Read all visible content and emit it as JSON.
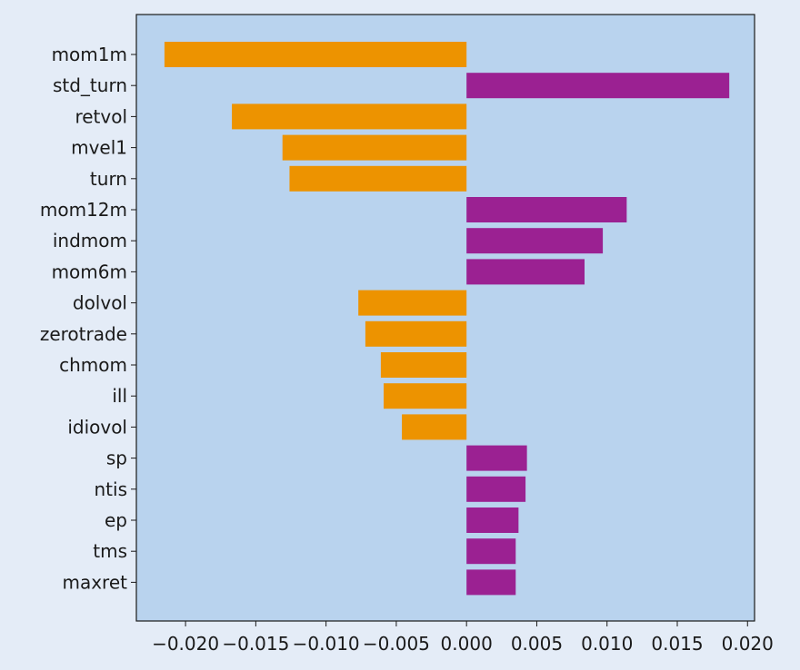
{
  "chart_data": {
    "type": "bar",
    "orientation": "horizontal",
    "title": "",
    "xlabel": "",
    "ylabel": "",
    "xlim": [
      -0.0235,
      0.0205
    ],
    "grid": false,
    "legend": "none",
    "xticks": [
      -0.02,
      -0.015,
      -0.01,
      -0.005,
      0.0,
      0.005,
      0.01,
      0.015,
      0.02
    ],
    "xtick_labels": [
      "−0.020",
      "−0.015",
      "−0.010",
      "−0.005",
      "0.000",
      "0.005",
      "0.010",
      "0.015",
      "0.020"
    ],
    "categories": [
      "mom1m",
      "std_turn",
      "retvol",
      "mvel1",
      "turn",
      "mom12m",
      "indmom",
      "mom6m",
      "dolvol",
      "zerotrade",
      "chmom",
      "ill",
      "idiovol",
      "sp",
      "ntis",
      "ep",
      "tms",
      "maxret"
    ],
    "values": [
      -0.0215,
      0.0187,
      -0.0167,
      -0.0131,
      -0.0126,
      0.0114,
      0.0097,
      0.0084,
      -0.0077,
      -0.0072,
      -0.0061,
      -0.0059,
      -0.0046,
      0.0043,
      0.0042,
      0.0037,
      0.0035,
      0.0035
    ],
    "colors": {
      "negative": "#ed9300",
      "positive": "#9b2192",
      "plot_background": "#b9d3ee",
      "figure_background": "#e4ecf7",
      "axes": "#1a1a1a"
    }
  }
}
